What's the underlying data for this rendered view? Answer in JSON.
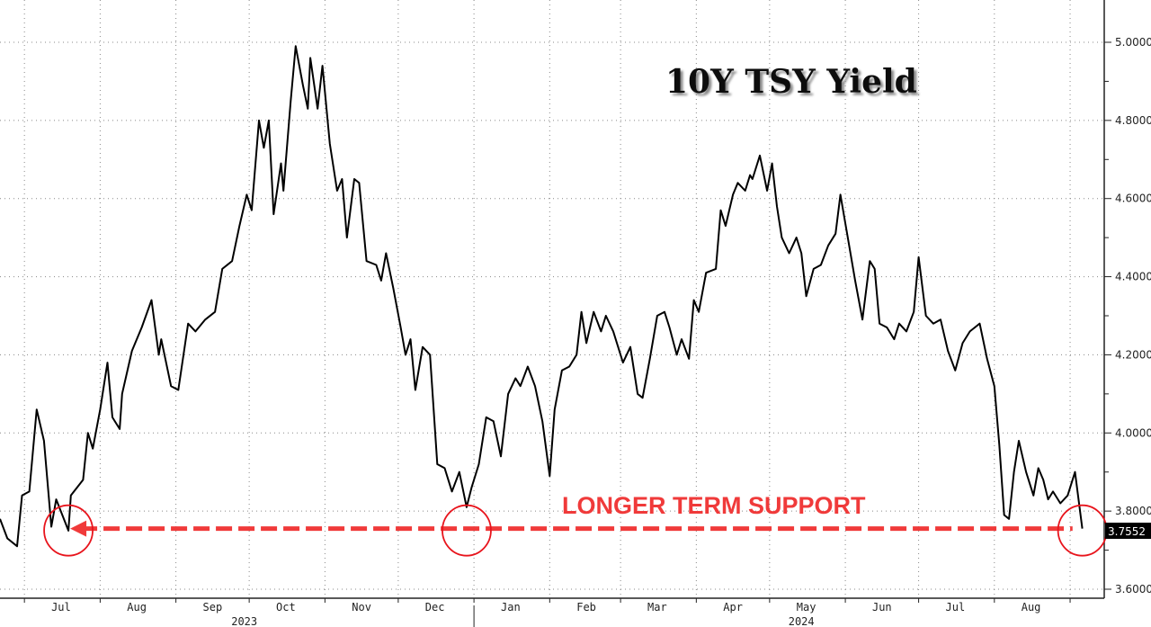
{
  "chart_data": {
    "type": "line",
    "title": "10Y TSY Yield",
    "xlabel": "",
    "ylabel": "",
    "x_tick_labels": [
      "Jul",
      "Aug",
      "Sep",
      "Oct",
      "Nov",
      "Dec",
      "Jan",
      "Feb",
      "Mar",
      "Apr",
      "May",
      "Jun",
      "Jul",
      "Aug"
    ],
    "year_labels": [
      "2023",
      "2024"
    ],
    "y_ticks": [
      "3.6000",
      "3.8000",
      "4.0000",
      "4.2000",
      "4.4000",
      "4.6000",
      "4.8000",
      "5.0000"
    ],
    "ylim": [
      3.6,
      5.05
    ],
    "xlim": [
      "2023-06-21",
      "2024-09-12"
    ],
    "y_axis_position": "right",
    "grid": true,
    "line_color": "#000000",
    "last_value_label": "3.7552",
    "annotations": {
      "text": "LONGER TERM SUPPORT",
      "color": "#f03a3a",
      "support_level": 3.755,
      "support_line_from": "2023-07-19",
      "support_line_to": "2024-09-02",
      "circled_dates": [
        "2023-07-19",
        "2023-12-29",
        "2024-09-06"
      ]
    },
    "series": [
      {
        "x": [
          "2023-06-21",
          "2023-06-24",
          "2023-06-28",
          "2023-06-30",
          "2023-07-03",
          "2023-07-06",
          "2023-07-09",
          "2023-07-12",
          "2023-07-14",
          "2023-07-19",
          "2023-07-20",
          "2023-07-25",
          "2023-07-27",
          "2023-07-29",
          "2023-08-01",
          "2023-08-04",
          "2023-08-06",
          "2023-08-09",
          "2023-08-10",
          "2023-08-14",
          "2023-08-18",
          "2023-08-22",
          "2023-08-25",
          "2023-08-26",
          "2023-08-30",
          "2023-09-02",
          "2023-09-06",
          "2023-09-09",
          "2023-09-13",
          "2023-09-17",
          "2023-09-20",
          "2023-09-24",
          "2023-09-27",
          "2023-09-30",
          "2023-10-02",
          "2023-10-05",
          "2023-10-07",
          "2023-10-09",
          "2023-10-11",
          "2023-10-14",
          "2023-10-15",
          "2023-10-18",
          "2023-10-20",
          "2023-10-23",
          "2023-10-25",
          "2023-10-26",
          "2023-10-29",
          "2023-10-31",
          "2023-11-03",
          "2023-11-06",
          "2023-11-08",
          "2023-11-10",
          "2023-11-13",
          "2023-11-15",
          "2023-11-18",
          "2023-11-22",
          "2023-11-24",
          "2023-11-26",
          "2023-11-29",
          "2023-12-02",
          "2023-12-04",
          "2023-12-06",
          "2023-12-08",
          "2023-12-11",
          "2023-12-14",
          "2023-12-17",
          "2023-12-20",
          "2023-12-23",
          "2023-12-26",
          "2023-12-29",
          "2023-12-31",
          "2024-01-03",
          "2024-01-06",
          "2024-01-09",
          "2024-01-12",
          "2024-01-15",
          "2024-01-18",
          "2024-01-20",
          "2024-01-23",
          "2024-01-26",
          "2024-01-29",
          "2024-02-01",
          "2024-02-03",
          "2024-02-06",
          "2024-02-09",
          "2024-02-12",
          "2024-02-14",
          "2024-02-16",
          "2024-02-19",
          "2024-02-22",
          "2024-02-24",
          "2024-02-27",
          "2024-03-02",
          "2024-03-05",
          "2024-03-08",
          "2024-03-10",
          "2024-03-13",
          "2024-03-16",
          "2024-03-19",
          "2024-03-21",
          "2024-03-24",
          "2024-03-26",
          "2024-03-29",
          "2024-03-31",
          "2024-04-02",
          "2024-04-05",
          "2024-04-09",
          "2024-04-11",
          "2024-04-13",
          "2024-04-16",
          "2024-04-18",
          "2024-04-21",
          "2024-04-23",
          "2024-04-24",
          "2024-04-27",
          "2024-04-30",
          "2024-05-02",
          "2024-05-04",
          "2024-05-06",
          "2024-05-09",
          "2024-05-12",
          "2024-05-14",
          "2024-05-16",
          "2024-05-19",
          "2024-05-22",
          "2024-05-25",
          "2024-05-28",
          "2024-05-30",
          "2024-06-02",
          "2024-06-05",
          "2024-06-08",
          "2024-06-11",
          "2024-06-13",
          "2024-06-15",
          "2024-06-18",
          "2024-06-21",
          "2024-06-23",
          "2024-06-26",
          "2024-06-29",
          "2024-07-01",
          "2024-07-04",
          "2024-07-07",
          "2024-07-10",
          "2024-07-13",
          "2024-07-16",
          "2024-07-19",
          "2024-07-22",
          "2024-07-24",
          "2024-07-26",
          "2024-07-29",
          "2024-08-01",
          "2024-08-03",
          "2024-08-05",
          "2024-08-07",
          "2024-08-09",
          "2024-08-11",
          "2024-08-14",
          "2024-08-17",
          "2024-08-19",
          "2024-08-21",
          "2024-08-23",
          "2024-08-25",
          "2024-08-28",
          "2024-08-31",
          "2024-09-03",
          "2024-09-06"
        ],
        "values": [
          3.78,
          3.73,
          3.71,
          3.84,
          3.85,
          4.06,
          3.98,
          3.76,
          3.83,
          3.75,
          3.84,
          3.88,
          4.0,
          3.96,
          4.06,
          4.18,
          4.04,
          4.01,
          4.1,
          4.21,
          4.27,
          4.34,
          4.2,
          4.24,
          4.12,
          4.11,
          4.28,
          4.26,
          4.29,
          4.31,
          4.42,
          4.44,
          4.53,
          4.61,
          4.57,
          4.8,
          4.73,
          4.8,
          4.56,
          4.69,
          4.62,
          4.85,
          4.99,
          4.89,
          4.83,
          4.96,
          4.83,
          4.94,
          4.74,
          4.62,
          4.65,
          4.5,
          4.65,
          4.64,
          4.44,
          4.43,
          4.39,
          4.46,
          4.37,
          4.27,
          4.2,
          4.24,
          4.11,
          4.22,
          4.2,
          3.92,
          3.91,
          3.85,
          3.9,
          3.81,
          3.86,
          3.92,
          4.04,
          4.03,
          3.94,
          4.1,
          4.14,
          4.12,
          4.17,
          4.12,
          4.03,
          3.89,
          4.06,
          4.16,
          4.17,
          4.2,
          4.31,
          4.23,
          4.31,
          4.26,
          4.3,
          4.26,
          4.18,
          4.22,
          4.1,
          4.09,
          4.19,
          4.3,
          4.31,
          4.27,
          4.2,
          4.24,
          4.19,
          4.34,
          4.31,
          4.41,
          4.42,
          4.57,
          4.53,
          4.61,
          4.64,
          4.62,
          4.66,
          4.65,
          4.71,
          4.62,
          4.69,
          4.58,
          4.5,
          4.46,
          4.5,
          4.46,
          4.35,
          4.42,
          4.43,
          4.48,
          4.51,
          4.61,
          4.5,
          4.39,
          4.29,
          4.44,
          4.42,
          4.28,
          4.27,
          4.24,
          4.28,
          4.26,
          4.31,
          4.45,
          4.3,
          4.28,
          4.29,
          4.21,
          4.16,
          4.23,
          4.26,
          4.27,
          4.28,
          4.19,
          4.12,
          3.97,
          3.79,
          3.78,
          3.9,
          3.98,
          3.9,
          3.84,
          3.91,
          3.88,
          3.83,
          3.85,
          3.82,
          3.84,
          3.9,
          3.7552
        ]
      }
    ]
  }
}
